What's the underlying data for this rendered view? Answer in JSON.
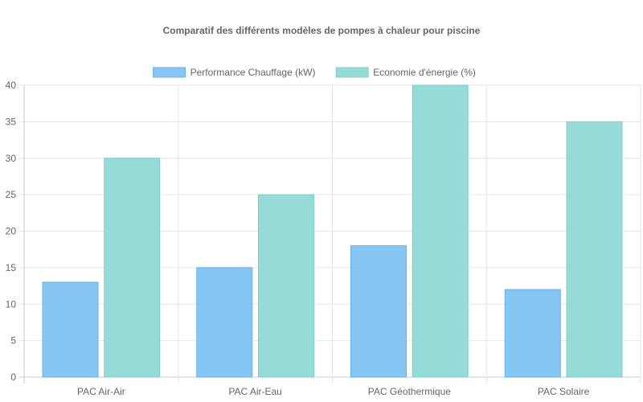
{
  "chart_data": {
    "type": "bar",
    "title": "Comparatif des différents modèles de pompes à chaleur pour piscine",
    "categories": [
      "PAC Air-Air",
      "PAC Air-Eau",
      "PAC Géothermique",
      "PAC Solaire"
    ],
    "series": [
      {
        "name": "Performance Chauffage (kW)",
        "values": [
          13,
          15,
          18,
          12
        ],
        "color": "#87c5f2",
        "border": "#66b2ea"
      },
      {
        "name": "Economie d'énergie (%)",
        "values": [
          30,
          25,
          40,
          35
        ],
        "color": "#96dbd8",
        "border": "#7fd0cc"
      }
    ],
    "ylim": [
      0,
      40
    ],
    "y_ticks": [
      0,
      5,
      10,
      15,
      20,
      25,
      30,
      35,
      40
    ],
    "grid": true,
    "legend_position": "top"
  }
}
